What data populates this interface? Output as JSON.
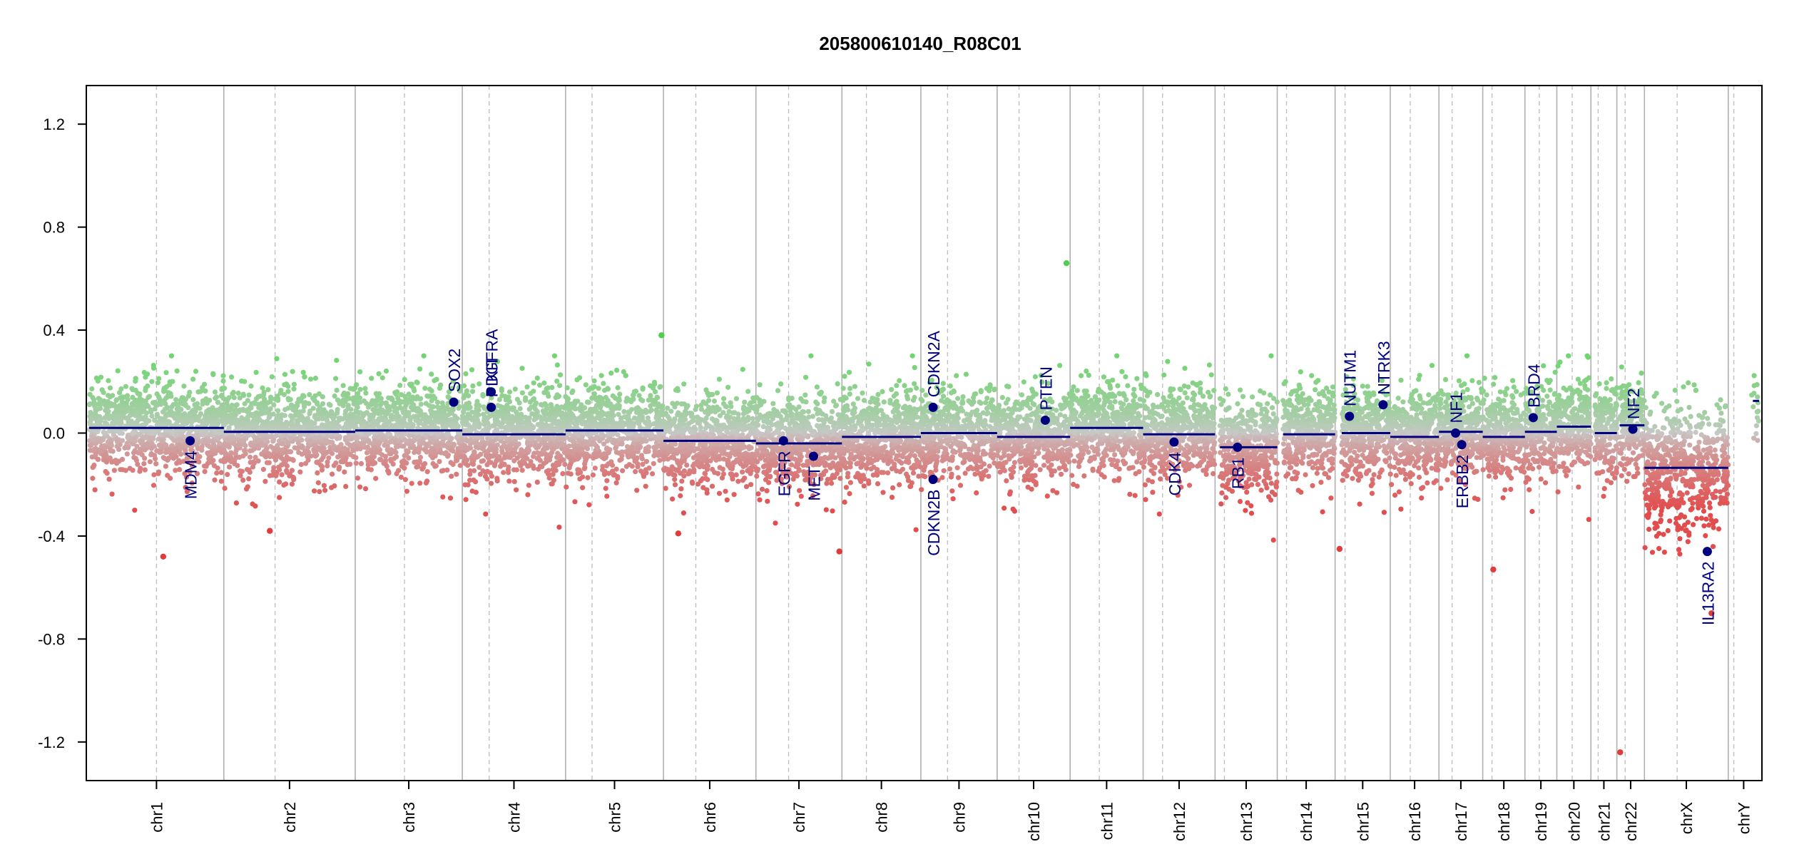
{
  "chart_data": {
    "type": "scatter",
    "title": "205800610140_R08C01",
    "xlabel": "",
    "ylabel": "",
    "ylim": [
      -1.35,
      1.35
    ],
    "y_ticks": [
      -1.2,
      -0.8,
      -0.4,
      0.0,
      0.4,
      0.8,
      1.2
    ],
    "y_tick_labels": [
      "-1.2",
      "-0.8",
      "-0.4",
      "0.0",
      "0.4",
      "0.8",
      "1.2"
    ],
    "grid": false,
    "colors": {
      "gain": "#4ecf4e",
      "loss": "#e03c3c",
      "neutral": "#c8c8c8",
      "segment": "#00007f",
      "gene": "#00007f",
      "boundary": "#b0b0b0",
      "centromere": "#c0c0c0"
    },
    "chromosomes": [
      {
        "name": "chr1",
        "length": 249,
        "centromere": 0.5
      },
      {
        "name": "chr2",
        "length": 243,
        "centromere": 0.39
      },
      {
        "name": "chr3",
        "length": 198,
        "centromere": 0.46
      },
      {
        "name": "chr4",
        "length": 191,
        "centromere": 0.26
      },
      {
        "name": "chr5",
        "length": 181,
        "centromere": 0.27
      },
      {
        "name": "chr6",
        "length": 171,
        "centromere": 0.35
      },
      {
        "name": "chr7",
        "length": 159,
        "centromere": 0.38
      },
      {
        "name": "chr8",
        "length": 146,
        "centromere": 0.31
      },
      {
        "name": "chr9",
        "length": 141,
        "centromere": 0.35
      },
      {
        "name": "chr10",
        "length": 135,
        "centromere": 0.3
      },
      {
        "name": "chr11",
        "length": 135,
        "centromere": 0.4
      },
      {
        "name": "chr12",
        "length": 133,
        "centromere": 0.27
      },
      {
        "name": "chr13",
        "length": 115,
        "centromere": 0.15
      },
      {
        "name": "chr14",
        "length": 107,
        "centromere": 0.16
      },
      {
        "name": "chr15",
        "length": 102,
        "centromere": 0.18
      },
      {
        "name": "chr16",
        "length": 90,
        "centromere": 0.41
      },
      {
        "name": "chr17",
        "length": 81,
        "centromere": 0.3
      },
      {
        "name": "chr18",
        "length": 78,
        "centromere": 0.22
      },
      {
        "name": "chr19",
        "length": 59,
        "centromere": 0.45
      },
      {
        "name": "chr20",
        "length": 63,
        "centromere": 0.45
      },
      {
        "name": "chr21",
        "length": 48,
        "centromere": 0.28
      },
      {
        "name": "chr22",
        "length": 51,
        "centromere": 0.3
      },
      {
        "name": "chrX",
        "length": 155,
        "centromere": 0.39
      },
      {
        "name": "chrY",
        "length": 57,
        "centromere": 0.18
      }
    ],
    "segments": [
      {
        "chr": "chr1",
        "start": 0.0,
        "end": 1.0,
        "value": 0.02
      },
      {
        "chr": "chr2",
        "start": 0.0,
        "end": 1.0,
        "value": 0.005
      },
      {
        "chr": "chr3",
        "start": 0.0,
        "end": 1.0,
        "value": 0.01
      },
      {
        "chr": "chr4",
        "start": 0.0,
        "end": 1.0,
        "value": -0.005
      },
      {
        "chr": "chr5",
        "start": 0.0,
        "end": 1.0,
        "value": 0.01
      },
      {
        "chr": "chr6",
        "start": 0.0,
        "end": 1.0,
        "value": -0.03
      },
      {
        "chr": "chr7",
        "start": 0.0,
        "end": 1.0,
        "value": -0.04
      },
      {
        "chr": "chr8",
        "start": 0.0,
        "end": 1.0,
        "value": -0.015
      },
      {
        "chr": "chr9",
        "start": 0.0,
        "end": 1.0,
        "value": 0.0
      },
      {
        "chr": "chr10",
        "start": 0.0,
        "end": 1.0,
        "value": -0.015
      },
      {
        "chr": "chr11",
        "start": 0.0,
        "end": 1.0,
        "value": 0.02
      },
      {
        "chr": "chr12",
        "start": 0.0,
        "end": 1.0,
        "value": -0.005
      },
      {
        "chr": "chr13",
        "start": 0.08,
        "end": 1.0,
        "value": -0.055
      },
      {
        "chr": "chr14",
        "start": 0.1,
        "end": 1.0,
        "value": -0.005
      },
      {
        "chr": "chr15",
        "start": 0.12,
        "end": 1.0,
        "value": 0.0
      },
      {
        "chr": "chr16",
        "start": 0.0,
        "end": 1.0,
        "value": -0.015
      },
      {
        "chr": "chr17",
        "start": 0.0,
        "end": 1.0,
        "value": 0.005
      },
      {
        "chr": "chr18",
        "start": 0.0,
        "end": 1.0,
        "value": -0.015
      },
      {
        "chr": "chr19",
        "start": 0.0,
        "end": 1.0,
        "value": 0.005
      },
      {
        "chr": "chr20",
        "start": 0.0,
        "end": 1.0,
        "value": 0.025
      },
      {
        "chr": "chr21",
        "start": 0.15,
        "end": 1.0,
        "value": 0.0
      },
      {
        "chr": "chr22",
        "start": 0.1,
        "end": 1.0,
        "value": 0.03
      },
      {
        "chr": "chrX",
        "start": 0.0,
        "end": 1.0,
        "value": -0.135
      },
      {
        "chr": "chrY",
        "start": 0.8,
        "end": 1.0,
        "value": 0.125
      }
    ],
    "genes": [
      {
        "name": "MDM4",
        "chr": "chr1",
        "pos": 0.75,
        "value": -0.03,
        "label_side": "below"
      },
      {
        "name": "SOX2",
        "chr": "chr3",
        "pos": 0.92,
        "value": 0.12,
        "label_side": "above"
      },
      {
        "name": "KIT",
        "chr": "chr4",
        "pos": 0.28,
        "value": 0.16,
        "label_side": "above"
      },
      {
        "name": "PDGFRA",
        "chr": "chr4",
        "pos": 0.28,
        "value": 0.1,
        "label_side": "above"
      },
      {
        "name": "EGFR",
        "chr": "chr7",
        "pos": 0.32,
        "value": -0.03,
        "label_side": "below"
      },
      {
        "name": "MET",
        "chr": "chr7",
        "pos": 0.67,
        "value": -0.09,
        "label_side": "below"
      },
      {
        "name": "CDKN2A",
        "chr": "chr9",
        "pos": 0.16,
        "value": 0.1,
        "label_side": "above"
      },
      {
        "name": "CDKN2B",
        "chr": "chr9",
        "pos": 0.16,
        "value": -0.18,
        "label_side": "below"
      },
      {
        "name": "PTEN",
        "chr": "chr10",
        "pos": 0.66,
        "value": 0.05,
        "label_side": "above"
      },
      {
        "name": "CDK4",
        "chr": "chr12",
        "pos": 0.43,
        "value": -0.035,
        "label_side": "below"
      },
      {
        "name": "RB1",
        "chr": "chr13",
        "pos": 0.36,
        "value": -0.055,
        "label_side": "below"
      },
      {
        "name": "NUTM1",
        "chr": "chr15",
        "pos": 0.26,
        "value": 0.065,
        "label_side": "above"
      },
      {
        "name": "NTRK3",
        "chr": "chr15",
        "pos": 0.87,
        "value": 0.11,
        "label_side": "above"
      },
      {
        "name": "NF1",
        "chr": "chr17",
        "pos": 0.38,
        "value": 0.0,
        "label_side": "above"
      },
      {
        "name": "ERBB2",
        "chr": "chr17",
        "pos": 0.52,
        "value": -0.045,
        "label_side": "below"
      },
      {
        "name": "BRD4",
        "chr": "chr19",
        "pos": 0.26,
        "value": 0.06,
        "label_side": "above"
      },
      {
        "name": "NF2",
        "chr": "chr22",
        "pos": 0.58,
        "value": 0.015,
        "label_side": "above"
      },
      {
        "name": "IL13RA2",
        "chr": "chrX",
        "pos": 0.75,
        "value": -0.46,
        "label_side": "below"
      }
    ],
    "outliers": [
      {
        "chr": "chr1",
        "pos": 0.55,
        "value": -0.48
      },
      {
        "chr": "chr2",
        "pos": 0.35,
        "value": -0.38
      },
      {
        "chr": "chr5",
        "pos": 0.98,
        "value": 0.38
      },
      {
        "chr": "chr6",
        "pos": 0.16,
        "value": -0.39
      },
      {
        "chr": "chr7",
        "pos": 0.97,
        "value": -0.46
      },
      {
        "chr": "chr10",
        "pos": 0.95,
        "value": 0.66
      },
      {
        "chr": "chr15",
        "pos": 0.08,
        "value": -0.45
      },
      {
        "chr": "chr18",
        "pos": 0.25,
        "value": -0.53
      },
      {
        "chr": "chr22",
        "pos": 0.12,
        "value": -1.24
      },
      {
        "chr": "chrX",
        "pos": 0.8,
        "value": -0.7
      }
    ]
  }
}
